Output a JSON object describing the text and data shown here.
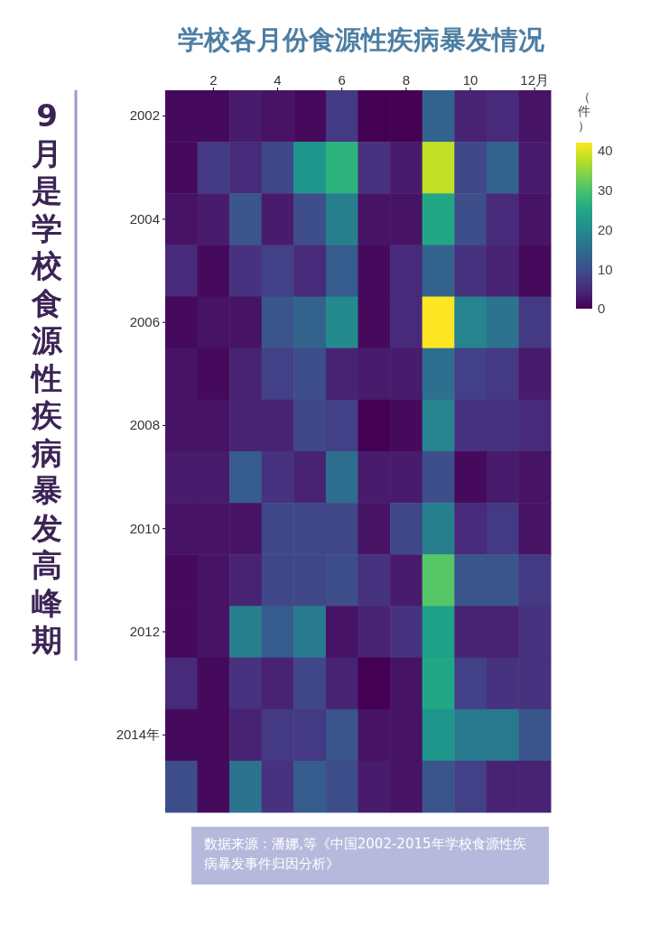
{
  "chart_data": {
    "type": "heatmap",
    "title": "学校各月份食源性疾病暴发情况",
    "subtitle": "9月是学校食源性疾病暴发高峰期",
    "categories": [
      null,
      "2",
      null,
      "4",
      null,
      "6",
      null,
      "8",
      null,
      "10",
      null,
      "12月"
    ],
    "y_categories": [
      "2002",
      null,
      "2004",
      null,
      "2006",
      null,
      "2008",
      null,
      "2010",
      null,
      "2012",
      null,
      "2014年",
      null
    ],
    "cells": [
      [
        1,
        1,
        3,
        2,
        1,
        7,
        0,
        0,
        13,
        4,
        5,
        2
      ],
      [
        1,
        7,
        5,
        9,
        22,
        27,
        6,
        3,
        38,
        9,
        13,
        3
      ],
      [
        2,
        3,
        11,
        3,
        10,
        18,
        2,
        2,
        25,
        10,
        5,
        2
      ],
      [
        5,
        1,
        6,
        8,
        5,
        12,
        1,
        5,
        13,
        6,
        4,
        1
      ],
      [
        1,
        2,
        2,
        11,
        13,
        20,
        1,
        5,
        42,
        19,
        16,
        7
      ],
      [
        2,
        1,
        4,
        8,
        10,
        4,
        3,
        3,
        15,
        8,
        7,
        3
      ],
      [
        2,
        2,
        4,
        4,
        9,
        8,
        0,
        1,
        19,
        6,
        6,
        5
      ],
      [
        3,
        3,
        12,
        6,
        4,
        15,
        3,
        3,
        10,
        1,
        3,
        2
      ],
      [
        2,
        2,
        2,
        9,
        9,
        9,
        2,
        9,
        18,
        5,
        7,
        2
      ],
      [
        1,
        2,
        4,
        9,
        9,
        10,
        6,
        3,
        31,
        11,
        11,
        7
      ],
      [
        1,
        2,
        18,
        12,
        17,
        2,
        4,
        6,
        24,
        4,
        4,
        6
      ],
      [
        5,
        1,
        6,
        4,
        9,
        4,
        0,
        2,
        25,
        8,
        6,
        6
      ],
      [
        1,
        1,
        4,
        7,
        7,
        11,
        2,
        2,
        22,
        17,
        17,
        11
      ],
      [
        10,
        1,
        16,
        6,
        12,
        10,
        3,
        2,
        11,
        8,
        4,
        4
      ]
    ],
    "clim": [
      0,
      42
    ],
    "cticks": [
      0,
      10,
      20,
      30,
      40
    ],
    "clabel": "（件）",
    "annotations": [
      "数据来源：潘娜,等《中国2002-2015年学校食源性疾病暴发事件归因分析》"
    ]
  }
}
